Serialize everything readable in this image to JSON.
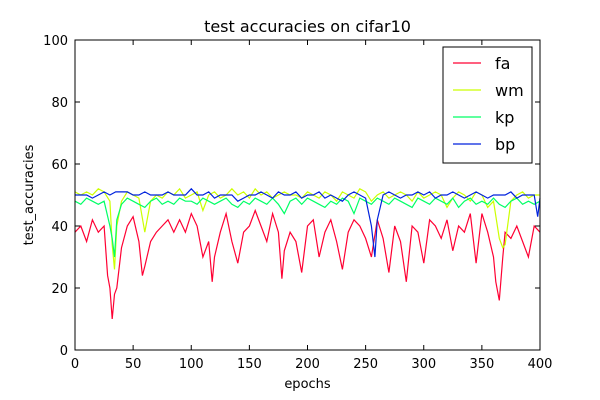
{
  "chart_data": {
    "type": "line",
    "title": "test accuracies on cifar10",
    "xlabel": "epochs",
    "ylabel": "test_accuracies",
    "xlim": [
      0,
      400
    ],
    "ylim": [
      0,
      100
    ],
    "xticks": [
      0,
      50,
      100,
      150,
      200,
      250,
      300,
      350,
      400
    ],
    "yticks": [
      0,
      20,
      40,
      60,
      80,
      100
    ],
    "grid": false,
    "legend_position": "top-right",
    "series": [
      {
        "name": "fa",
        "color": "#ff0033",
        "x": [
          0,
          5,
          10,
          15,
          20,
          25,
          28,
          30,
          32,
          34,
          36,
          40,
          45,
          50,
          55,
          58,
          60,
          65,
          70,
          75,
          80,
          85,
          90,
          95,
          100,
          105,
          110,
          115,
          118,
          120,
          125,
          130,
          135,
          140,
          145,
          150,
          155,
          160,
          165,
          170,
          175,
          178,
          180,
          185,
          190,
          195,
          200,
          205,
          210,
          215,
          220,
          225,
          230,
          235,
          240,
          245,
          250,
          255,
          260,
          265,
          270,
          275,
          280,
          285,
          290,
          295,
          300,
          305,
          310,
          315,
          320,
          325,
          330,
          335,
          340,
          345,
          350,
          355,
          360,
          362,
          365,
          368,
          370,
          375,
          380,
          385,
          390,
          395,
          400
        ],
        "y": [
          38,
          40,
          35,
          42,
          38,
          40,
          24,
          20,
          10,
          18,
          20,
          33,
          40,
          43,
          35,
          24,
          27,
          35,
          38,
          40,
          42,
          38,
          42,
          38,
          44,
          40,
          30,
          35,
          22,
          30,
          38,
          44,
          35,
          28,
          38,
          40,
          45,
          40,
          35,
          44,
          38,
          23,
          32,
          38,
          35,
          25,
          40,
          42,
          30,
          38,
          42,
          35,
          26,
          38,
          42,
          40,
          36,
          30,
          42,
          36,
          25,
          40,
          35,
          22,
          40,
          38,
          28,
          42,
          40,
          36,
          42,
          32,
          40,
          38,
          44,
          28,
          44,
          38,
          30,
          22,
          16,
          30,
          38,
          36,
          40,
          35,
          30,
          40,
          38
        ]
      },
      {
        "name": "wm",
        "color": "#ccff00",
        "x": [
          0,
          5,
          10,
          15,
          20,
          25,
          30,
          32,
          34,
          36,
          40,
          45,
          50,
          55,
          60,
          65,
          70,
          75,
          80,
          85,
          90,
          95,
          100,
          105,
          110,
          115,
          120,
          125,
          130,
          135,
          140,
          145,
          150,
          155,
          160,
          165,
          170,
          175,
          180,
          185,
          190,
          195,
          200,
          205,
          210,
          215,
          220,
          225,
          230,
          235,
          240,
          245,
          250,
          255,
          260,
          265,
          270,
          275,
          280,
          285,
          290,
          295,
          300,
          305,
          310,
          315,
          320,
          325,
          330,
          335,
          340,
          345,
          350,
          355,
          360,
          365,
          368,
          370,
          375,
          380,
          385,
          390,
          395,
          400
        ],
        "y": [
          51,
          50,
          51,
          50,
          52,
          51,
          48,
          34,
          26,
          40,
          48,
          51,
          50,
          49,
          38,
          48,
          50,
          49,
          51,
          50,
          52,
          49,
          50,
          51,
          45,
          50,
          51,
          49,
          50,
          52,
          50,
          51,
          49,
          52,
          50,
          51,
          49,
          50,
          51,
          50,
          50,
          49,
          51,
          50,
          49,
          51,
          50,
          48,
          51,
          50,
          49,
          52,
          51,
          48,
          50,
          51,
          49,
          50,
          51,
          50,
          48,
          51,
          49,
          50,
          51,
          50,
          46,
          49,
          51,
          50,
          48,
          51,
          50,
          46,
          48,
          36,
          33,
          34,
          48,
          50,
          51,
          49,
          50,
          50
        ]
      },
      {
        "name": "kp",
        "color": "#00ff66",
        "x": [
          0,
          5,
          10,
          15,
          20,
          25,
          30,
          32,
          34,
          36,
          40,
          45,
          50,
          55,
          60,
          65,
          70,
          75,
          80,
          85,
          90,
          95,
          100,
          105,
          110,
          115,
          120,
          125,
          130,
          135,
          140,
          145,
          150,
          155,
          160,
          165,
          170,
          175,
          180,
          185,
          190,
          195,
          200,
          205,
          210,
          215,
          220,
          225,
          230,
          235,
          240,
          245,
          250,
          255,
          260,
          265,
          270,
          275,
          280,
          285,
          290,
          295,
          300,
          305,
          310,
          315,
          320,
          325,
          330,
          335,
          340,
          345,
          350,
          355,
          360,
          365,
          370,
          375,
          380,
          385,
          390,
          395,
          400
        ],
        "y": [
          48,
          47,
          49,
          48,
          47,
          48,
          40,
          36,
          30,
          42,
          47,
          49,
          48,
          47,
          46,
          48,
          49,
          47,
          48,
          47,
          49,
          48,
          48,
          47,
          49,
          48,
          47,
          48,
          49,
          47,
          46,
          48,
          47,
          49,
          48,
          47,
          49,
          47,
          44,
          48,
          49,
          47,
          49,
          48,
          47,
          46,
          48,
          47,
          49,
          48,
          44,
          49,
          48,
          47,
          49,
          48,
          47,
          49,
          48,
          47,
          46,
          49,
          48,
          47,
          49,
          48,
          47,
          49,
          46,
          48,
          49,
          47,
          48,
          47,
          49,
          47,
          46,
          48,
          49,
          47,
          48,
          47,
          48
        ]
      },
      {
        "name": "bp",
        "color": "#0022dd",
        "x": [
          0,
          5,
          10,
          15,
          20,
          25,
          30,
          35,
          40,
          45,
          50,
          55,
          60,
          65,
          70,
          75,
          80,
          85,
          90,
          95,
          100,
          105,
          110,
          115,
          120,
          125,
          130,
          135,
          140,
          145,
          150,
          155,
          160,
          165,
          170,
          175,
          180,
          185,
          190,
          195,
          200,
          205,
          210,
          215,
          220,
          225,
          230,
          235,
          240,
          245,
          250,
          255,
          258,
          260,
          265,
          270,
          275,
          280,
          285,
          290,
          295,
          300,
          305,
          310,
          315,
          320,
          325,
          330,
          335,
          340,
          345,
          350,
          355,
          360,
          365,
          370,
          375,
          380,
          385,
          390,
          395,
          398,
          400
        ],
        "y": [
          50,
          50,
          50,
          49,
          50,
          51,
          50,
          51,
          51,
          51,
          50,
          50,
          51,
          50,
          50,
          50,
          51,
          50,
          50,
          50,
          52,
          50,
          50,
          51,
          49,
          50,
          50,
          50,
          48,
          49,
          50,
          50,
          51,
          50,
          49,
          51,
          50,
          50,
          51,
          49,
          50,
          50,
          51,
          49,
          50,
          49,
          48,
          50,
          51,
          50,
          49,
          40,
          30,
          42,
          50,
          51,
          50,
          49,
          50,
          50,
          51,
          50,
          51,
          49,
          50,
          50,
          51,
          50,
          49,
          50,
          51,
          50,
          49,
          50,
          50,
          50,
          51,
          49,
          50,
          50,
          50,
          43,
          49
        ]
      }
    ]
  }
}
